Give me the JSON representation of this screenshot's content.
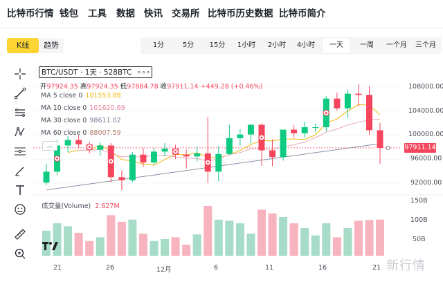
{
  "nav": {
    "items": [
      "比特币行情",
      "钱包",
      "工具",
      "数据",
      "快讯",
      "交易所",
      "比特币历史数据",
      "比特币简介"
    ]
  },
  "chart_tabs": [
    "K线",
    "趋势"
  ],
  "timeframes": [
    "1分",
    "5分",
    "15分",
    "1小时",
    "2小时",
    "4小时",
    "一天",
    "一周",
    "一个月",
    "三个月"
  ],
  "selected_timeframe": "一天",
  "pair": {
    "label": "BTC/USDT · 1天 · 528BTC",
    "more": "∘∘∘"
  },
  "ohlc": {
    "open_label": "开",
    "open": "97924.35",
    "high_label": "高",
    "high": "97924.35",
    "low_label": "低",
    "low": "97884.78",
    "close_label": "收",
    "close": "97911.14",
    "change": "+449.28 (+0.46%)"
  },
  "ma": [
    {
      "label": "MA 5 close 0",
      "value": "101553.88",
      "color": "#f0b90b"
    },
    {
      "label": "MA 10 close 0",
      "value": "101620.69",
      "color": "#eaa9b6"
    },
    {
      "label": "MA 30 close 0",
      "value": "98611.02",
      "color": "#8b90a5"
    },
    {
      "label": "MA 60 close 0",
      "value": "88007.59",
      "color": "#6f7583"
    }
  ],
  "collapse_glyph": "︿",
  "volume": {
    "label": "成交量(Volume)",
    "value": "2.627M"
  },
  "price_axis": [
    "108000.00",
    "104000.00",
    "100000.00",
    "96000.00",
    "92000.00"
  ],
  "current_price": "97911.14",
  "volume_axis": [
    "150B",
    "100B",
    "50B"
  ],
  "x_axis": [
    "21",
    "26",
    "12月",
    "6",
    "11",
    "16",
    "21"
  ],
  "watermark": "新行情",
  "colors": {
    "up": "#0ecb81",
    "down": "#f6465d",
    "accent": "#fcd535",
    "up_vol": "#a6dcc8",
    "down_vol": "#f7b4be"
  },
  "chart_data": {
    "type": "candlestick",
    "y_range": [
      90000,
      110000
    ],
    "volume_range": [
      0,
      150
    ],
    "volume_unit": "B",
    "candles": [
      {
        "o": 92200,
        "c": 94000,
        "h": 95200,
        "l": 91800,
        "v": 68
      },
      {
        "o": 94000,
        "c": 98300,
        "h": 99200,
        "l": 93500,
        "v": 88
      },
      {
        "o": 98300,
        "c": 99200,
        "h": 99800,
        "l": 97200,
        "v": 80
      },
      {
        "o": 99200,
        "c": 98500,
        "h": 100000,
        "l": 97800,
        "v": 62
      },
      {
        "o": 98500,
        "c": 97600,
        "h": 98900,
        "l": 97000,
        "v": 40
      },
      {
        "o": 97600,
        "c": 98300,
        "h": 98800,
        "l": 96600,
        "v": 50
      },
      {
        "o": 98300,
        "c": 93100,
        "h": 98700,
        "l": 92200,
        "v": 110
      },
      {
        "o": 93100,
        "c": 92600,
        "h": 94200,
        "l": 91000,
        "v": 92
      },
      {
        "o": 92600,
        "c": 96800,
        "h": 97200,
        "l": 92300,
        "v": 98
      },
      {
        "o": 96800,
        "c": 95500,
        "h": 97900,
        "l": 94800,
        "v": 60
      },
      {
        "o": 95500,
        "c": 97300,
        "h": 97900,
        "l": 95100,
        "v": 40
      },
      {
        "o": 97300,
        "c": 97800,
        "h": 98700,
        "l": 96500,
        "v": 45
      },
      {
        "o": 97800,
        "c": 96800,
        "h": 98400,
        "l": 96100,
        "v": 50
      },
      {
        "o": 96800,
        "c": 96500,
        "h": 97600,
        "l": 94500,
        "v": 30
      },
      {
        "o": 96500,
        "c": 97000,
        "h": 98200,
        "l": 95700,
        "v": 58
      },
      {
        "o": 97000,
        "c": 94000,
        "h": 103000,
        "l": 92100,
        "v": 135
      },
      {
        "o": 94000,
        "c": 96900,
        "h": 98200,
        "l": 92400,
        "v": 98
      },
      {
        "o": 96900,
        "c": 99500,
        "h": 101700,
        "l": 96700,
        "v": 95
      },
      {
        "o": 99500,
        "c": 100100,
        "h": 101000,
        "l": 98200,
        "v": 88
      },
      {
        "o": 100100,
        "c": 101700,
        "h": 101800,
        "l": 98600,
        "v": 60
      },
      {
        "o": 101700,
        "c": 97500,
        "h": 101900,
        "l": 95000,
        "v": 125
      },
      {
        "o": 97500,
        "c": 96400,
        "h": 99300,
        "l": 94900,
        "v": 115
      },
      {
        "o": 96400,
        "c": 100900,
        "h": 100900,
        "l": 95800,
        "v": 105
      },
      {
        "o": 100900,
        "c": 100300,
        "h": 101700,
        "l": 99600,
        "v": 88
      },
      {
        "o": 100300,
        "c": 101300,
        "h": 102200,
        "l": 99600,
        "v": 75
      },
      {
        "o": 101300,
        "c": 101300,
        "h": 101900,
        "l": 100500,
        "v": 55
      },
      {
        "o": 101300,
        "c": 106000,
        "h": 106400,
        "l": 100600,
        "v": 88
      },
      {
        "o": 106000,
        "c": 104400,
        "h": 107000,
        "l": 104000,
        "v": 50
      },
      {
        "o": 104400,
        "c": 106800,
        "h": 107500,
        "l": 102800,
        "v": 75
      },
      {
        "o": 106800,
        "c": 106600,
        "h": 108400,
        "l": 104700,
        "v": 95
      },
      {
        "o": 106600,
        "c": 100800,
        "h": 108000,
        "l": 100000,
        "v": 97
      },
      {
        "o": 100800,
        "c": 97900,
        "h": 102000,
        "l": 95300,
        "v": 98
      }
    ],
    "markers": [
      1,
      4,
      6,
      12,
      15,
      20,
      26
    ]
  }
}
